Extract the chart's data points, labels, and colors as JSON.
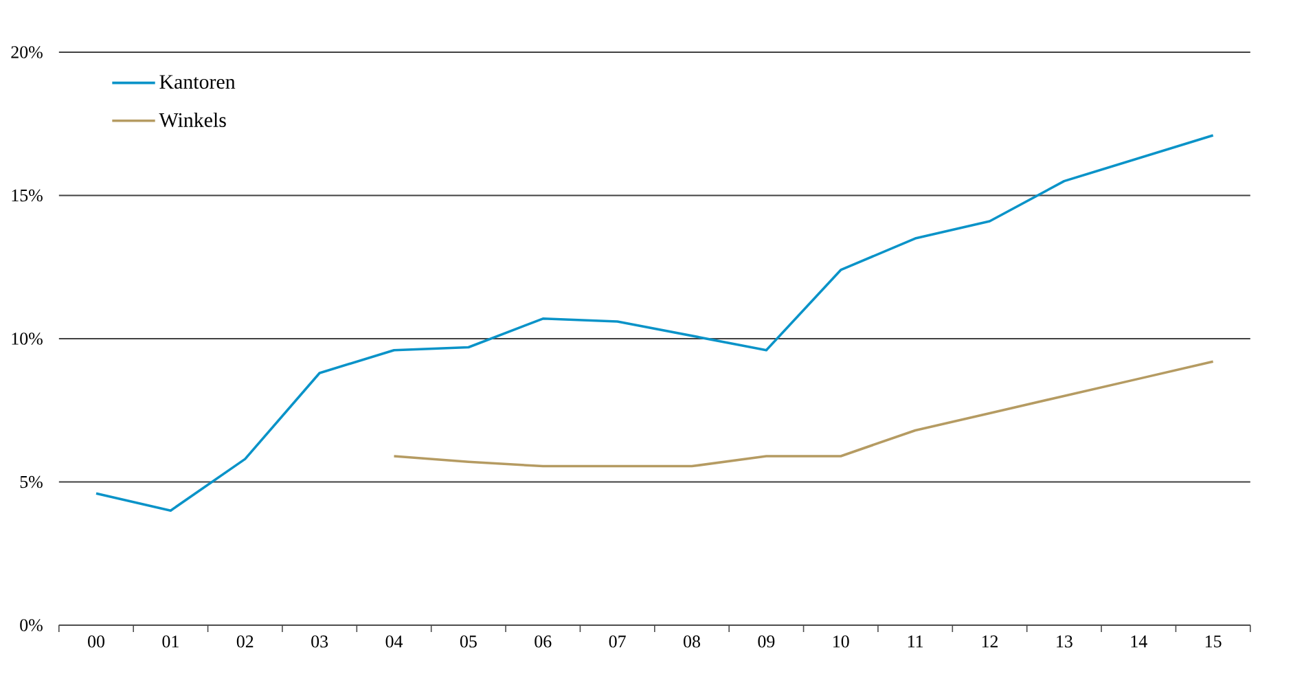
{
  "chart_data": {
    "type": "line",
    "categories": [
      "00",
      "01",
      "02",
      "03",
      "04",
      "05",
      "06",
      "07",
      "08",
      "09",
      "10",
      "11",
      "12",
      "13",
      "14",
      "15"
    ],
    "series": [
      {
        "name": "Kantoren",
        "color": "#0a93c8",
        "values": [
          4.6,
          4.0,
          5.8,
          8.8,
          9.6,
          9.7,
          10.7,
          10.6,
          10.1,
          9.6,
          12.4,
          13.5,
          14.1,
          15.5,
          16.3,
          17.1
        ]
      },
      {
        "name": "Winkels",
        "color": "#b59b62",
        "values": [
          null,
          null,
          null,
          null,
          5.9,
          5.7,
          5.55,
          5.55,
          5.55,
          5.9,
          5.9,
          6.8,
          7.4,
          8.0,
          8.6,
          9.2
        ]
      }
    ],
    "ylim": [
      0,
      20
    ],
    "yticks": [
      {
        "value": 0,
        "label": "0%"
      },
      {
        "value": 5,
        "label": "5%"
      },
      {
        "value": 10,
        "label": "10%"
      },
      {
        "value": 15,
        "label": "15%"
      },
      {
        "value": 20,
        "label": "20%"
      }
    ],
    "grid": "y",
    "legend": "top left",
    "marker": "none",
    "line_style": "solid"
  }
}
